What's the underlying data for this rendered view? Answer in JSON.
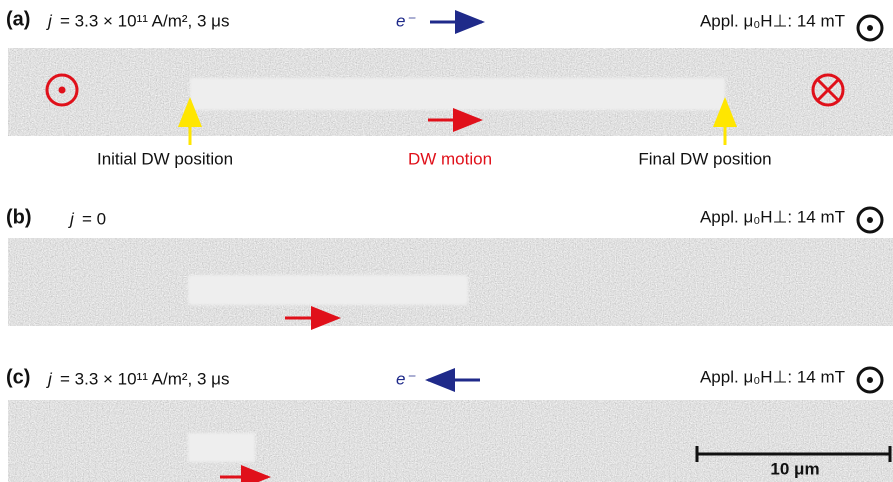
{
  "panels": [
    {
      "label": "(a)",
      "j": "j",
      "condition": "= 3.3 × 10¹¹ A/m², 3 μs",
      "electron": "e⁻",
      "field": "Appl. μ₀H⊥: 14 mT",
      "annotations": [
        "Initial DW position",
        "DW motion",
        "Final DW position"
      ]
    },
    {
      "label": "(b)",
      "j": "j",
      "condition": "= 0",
      "field": "Appl. μ₀H⊥: 14 mT"
    },
    {
      "label": "(c)",
      "j": "j",
      "condition": "= 3.3 × 10¹¹ A/m², 3 μs",
      "electron": "e⁻",
      "field": "Appl. μ₀H⊥: 14 mT",
      "scale_bar": "10 μm"
    }
  ]
}
